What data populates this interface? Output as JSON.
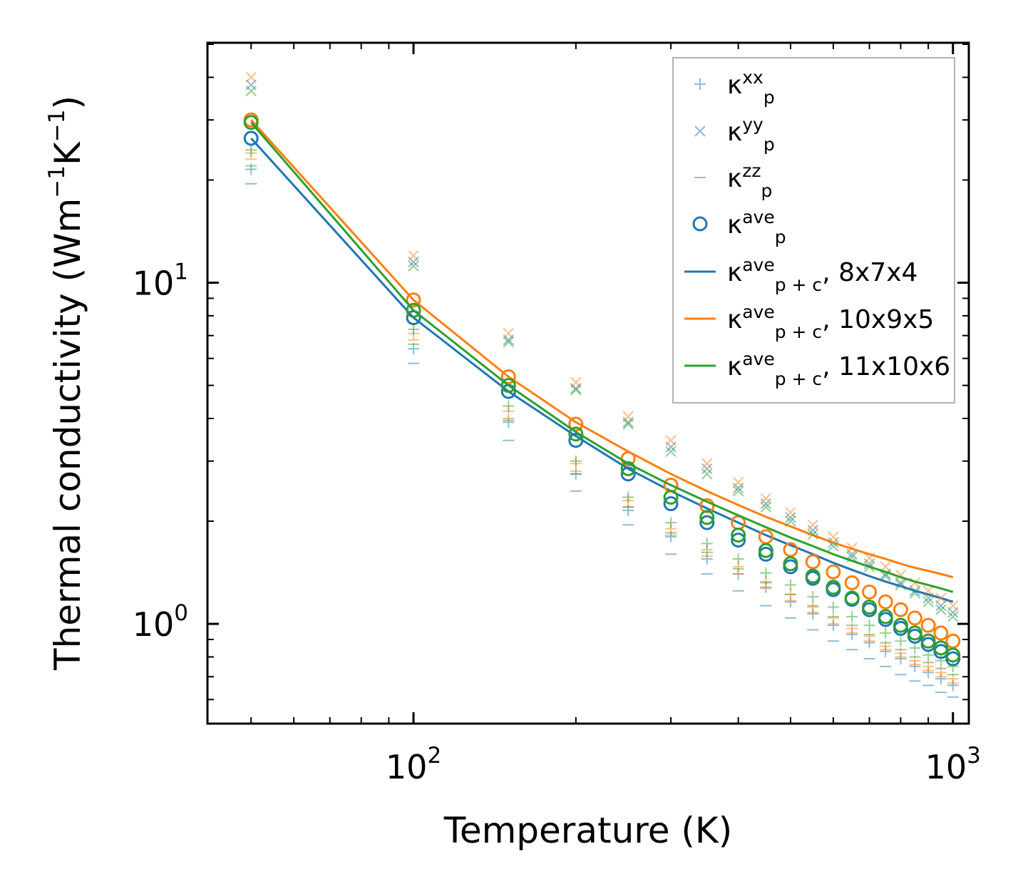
{
  "chart_data": {
    "type": "scatter",
    "scale": {
      "x": "log",
      "y": "log"
    },
    "xlabel": "Temperature (K)",
    "ylabel_parts": {
      "base": "Thermal conductivity (Wm",
      "sup1": "−1",
      "mid": "K",
      "sup2": "−1",
      "end": ")"
    },
    "xlim": [
      41.5,
      1070
    ],
    "ylim": [
      0.51,
      50.5
    ],
    "x_tick_labels": [
      {
        "base": "10",
        "exp": "2",
        "value": 100
      },
      {
        "base": "10",
        "exp": "3",
        "value": 1000
      }
    ],
    "y_tick_labels": [
      {
        "base": "10",
        "exp": "0",
        "value": 1
      },
      {
        "base": "10",
        "exp": "1",
        "value": 10
      }
    ],
    "colors": {
      "blue": "#1f77b4",
      "orange": "#ff7f0e",
      "green": "#2ca02c"
    },
    "temperatures": [
      50,
      100,
      150,
      200,
      250,
      300,
      350,
      400,
      450,
      500,
      550,
      600,
      650,
      700,
      750,
      800,
      850,
      900,
      950,
      1000
    ],
    "legend": {
      "position": "upper right",
      "entries": [
        {
          "kappa": "κ",
          "sub": "p",
          "sup": "xx",
          "suffix": "",
          "marker": "plus"
        },
        {
          "kappa": "κ",
          "sub": "p",
          "sup": "yy",
          "suffix": "",
          "marker": "x"
        },
        {
          "kappa": "κ",
          "sub": "p",
          "sup": "zz",
          "suffix": "",
          "marker": "dash"
        },
        {
          "kappa": "κ",
          "sub": "p",
          "sup": "ave",
          "suffix": "",
          "marker": "circle"
        },
        {
          "kappa": "κ",
          "sub": "p + c",
          "sup": "ave",
          "suffix": ", 8x7x4",
          "marker": "line",
          "color": "#1f77b4"
        },
        {
          "kappa": "κ",
          "sub": "p + c",
          "sup": "ave",
          "suffix": ", 10x9x5",
          "marker": "line",
          "color": "#ff7f0e"
        },
        {
          "kappa": "κ",
          "sub": "p + c",
          "sup": "ave",
          "suffix": ", 11x10x6",
          "marker": "line",
          "color": "#2ca02c"
        }
      ]
    },
    "series": [
      {
        "name": "8x7x4",
        "color": "#1f77b4",
        "kappa_xx": [
          21.5,
          6.4,
          3.9,
          2.75,
          2.15,
          1.8,
          1.55,
          1.4,
          1.28,
          1.16,
          1.07,
          0.99,
          0.93,
          0.88,
          0.83,
          0.79,
          0.75,
          0.72,
          0.69,
          0.66
        ],
        "kappa_yy": [
          38.0,
          11.5,
          6.8,
          4.9,
          3.9,
          3.3,
          2.85,
          2.5,
          2.25,
          2.05,
          1.88,
          1.73,
          1.6,
          1.5,
          1.4,
          1.32,
          1.25,
          1.19,
          1.13,
          1.08
        ],
        "kappa_zz": [
          19.5,
          5.8,
          3.45,
          2.45,
          1.95,
          1.6,
          1.4,
          1.25,
          1.13,
          1.04,
          0.96,
          0.89,
          0.84,
          0.79,
          0.75,
          0.71,
          0.68,
          0.66,
          0.63,
          0.61
        ],
        "kappa_ave": [
          26.5,
          7.9,
          4.8,
          3.45,
          2.75,
          2.25,
          1.98,
          1.76,
          1.6,
          1.47,
          1.36,
          1.26,
          1.18,
          1.1,
          1.03,
          0.97,
          0.92,
          0.87,
          0.83,
          0.79
        ],
        "kappa_pc": [
          26.5,
          7.9,
          4.8,
          3.55,
          2.85,
          2.45,
          2.18,
          1.98,
          1.82,
          1.7,
          1.6,
          1.51,
          1.44,
          1.38,
          1.33,
          1.29,
          1.25,
          1.22,
          1.19,
          1.16
        ]
      },
      {
        "name": "10x9x5",
        "color": "#ff7f0e",
        "kappa_xx": [
          24.0,
          7.1,
          4.2,
          2.95,
          2.3,
          1.9,
          1.65,
          1.47,
          1.33,
          1.22,
          1.12,
          1.04,
          0.97,
          0.92,
          0.86,
          0.82,
          0.78,
          0.75,
          0.72,
          0.69
        ],
        "kappa_yy": [
          40.0,
          12.0,
          7.1,
          5.1,
          4.05,
          3.45,
          2.95,
          2.6,
          2.33,
          2.12,
          1.95,
          1.8,
          1.67,
          1.56,
          1.47,
          1.39,
          1.32,
          1.25,
          1.19,
          1.13
        ],
        "kappa_zz": [
          23.0,
          6.8,
          4.0,
          2.8,
          2.2,
          1.82,
          1.58,
          1.4,
          1.27,
          1.17,
          1.08,
          1.0,
          0.94,
          0.89,
          0.84,
          0.8,
          0.76,
          0.73,
          0.7,
          0.67
        ],
        "kappa_ave": [
          30.0,
          8.9,
          5.3,
          3.85,
          3.05,
          2.55,
          2.22,
          1.98,
          1.8,
          1.65,
          1.52,
          1.42,
          1.32,
          1.24,
          1.16,
          1.1,
          1.04,
          0.99,
          0.94,
          0.89
        ],
        "kappa_pc": [
          30.0,
          8.9,
          5.3,
          3.9,
          3.2,
          2.75,
          2.45,
          2.23,
          2.06,
          1.93,
          1.82,
          1.73,
          1.66,
          1.6,
          1.55,
          1.5,
          1.46,
          1.43,
          1.4,
          1.37
        ]
      },
      {
        "name": "11x10x6",
        "color": "#2ca02c",
        "kappa_xx": [
          24.5,
          7.3,
          4.35,
          3.0,
          2.35,
          1.98,
          1.72,
          1.55,
          1.41,
          1.3,
          1.2,
          1.12,
          1.05,
          0.99,
          0.94,
          0.89,
          0.85,
          0.81,
          0.78,
          0.75
        ],
        "kappa_yy": [
          36.5,
          11.2,
          6.7,
          4.85,
          3.85,
          3.2,
          2.75,
          2.45,
          2.2,
          2.0,
          1.83,
          1.69,
          1.57,
          1.47,
          1.38,
          1.3,
          1.23,
          1.16,
          1.1,
          1.05
        ],
        "kappa_zz": [
          22.0,
          6.6,
          3.95,
          2.75,
          2.2,
          1.85,
          1.62,
          1.45,
          1.32,
          1.22,
          1.13,
          1.05,
          0.99,
          0.93,
          0.88,
          0.84,
          0.8,
          0.77,
          0.74,
          0.71
        ],
        "kappa_ave": [
          29.5,
          8.3,
          5.0,
          3.6,
          2.85,
          2.35,
          2.05,
          1.82,
          1.64,
          1.5,
          1.38,
          1.28,
          1.19,
          1.12,
          1.05,
          0.99,
          0.94,
          0.89,
          0.85,
          0.81
        ],
        "kappa_pc": [
          29.5,
          8.3,
          5.0,
          3.65,
          2.95,
          2.55,
          2.28,
          2.08,
          1.92,
          1.79,
          1.69,
          1.6,
          1.53,
          1.47,
          1.42,
          1.37,
          1.33,
          1.3,
          1.27,
          1.24
        ]
      }
    ]
  }
}
